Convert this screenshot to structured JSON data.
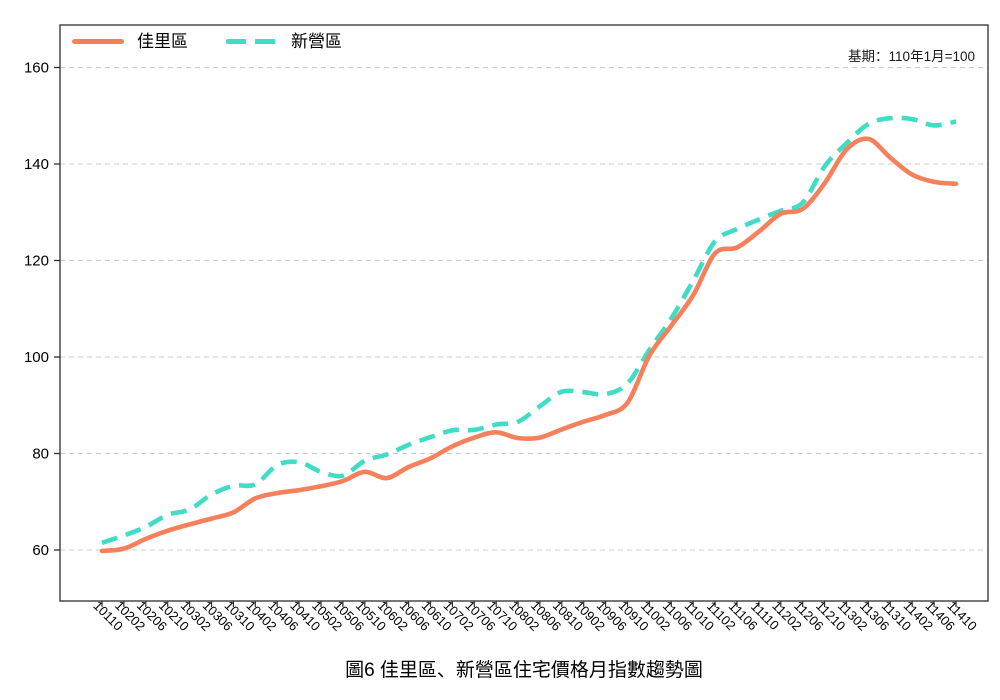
{
  "chart_data": {
    "type": "line",
    "title": "圖6 佳里區、新營區住宅價格月指數趨勢圖",
    "note": "基期：110年1月=100",
    "xlabel": "",
    "ylabel": "",
    "ylim": [
      49,
      169
    ],
    "y_ticks": [
      60,
      80,
      100,
      120,
      140,
      160
    ],
    "grid": "horizontal-dashed",
    "legend_position": "top-left-inside",
    "x_tick_rotation": 45,
    "categories": [
      "10110",
      "10202",
      "10206",
      "10210",
      "10302",
      "10306",
      "10310",
      "10402",
      "10406",
      "10410",
      "10502",
      "10506",
      "10510",
      "10602",
      "10606",
      "10610",
      "10702",
      "10706",
      "10710",
      "10802",
      "10806",
      "10810",
      "10902",
      "10906",
      "10910",
      "11002",
      "11006",
      "11010",
      "11102",
      "11106",
      "11110",
      "11202",
      "11206",
      "11210",
      "11302",
      "11306",
      "11310",
      "11402",
      "11406",
      "11410"
    ],
    "series": [
      {
        "name": "佳里區",
        "color": "#f5815c",
        "line_style": "solid",
        "values": [
          59.8,
          60.3,
          62.3,
          64.0,
          65.3,
          66.5,
          67.8,
          70.7,
          71.8,
          72.4,
          73.2,
          74.3,
          76.2,
          74.9,
          77.2,
          79.0,
          81.5,
          83.3,
          84.4,
          83.2,
          83.3,
          85.0,
          86.6,
          88.0,
          90.5,
          100.3,
          106.5,
          112.8,
          121.5,
          122.7,
          126.0,
          129.7,
          130.7,
          136.0,
          143.0,
          145.2,
          141.3,
          137.8,
          136.3,
          135.9
        ]
      },
      {
        "name": "新營區",
        "color": "#41dcc6",
        "line_style": "dashed",
        "values": [
          61.5,
          63.0,
          64.8,
          67.3,
          68.4,
          71.5,
          73.3,
          73.6,
          77.6,
          78.2,
          76.2,
          75.4,
          78.5,
          79.8,
          81.8,
          83.4,
          84.8,
          84.9,
          86.0,
          86.6,
          89.8,
          92.8,
          92.7,
          92.3,
          94.5,
          101.5,
          108.0,
          115.8,
          124.0,
          126.5,
          128.5,
          130.3,
          132.0,
          139.5,
          144.3,
          148.3,
          149.5,
          149.3,
          148.0,
          148.8
        ]
      }
    ]
  }
}
